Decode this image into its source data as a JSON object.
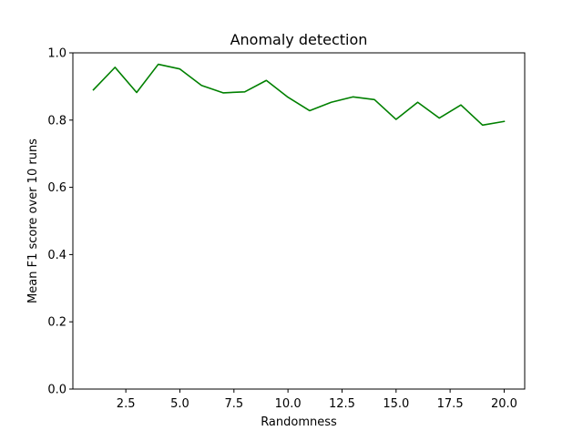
{
  "chart_data": {
    "type": "line",
    "title": "Anomaly detection",
    "xlabel": "Randomness",
    "ylabel": "Mean F1 score over 10 runs",
    "xlim": [
      0.05,
      20.95
    ],
    "ylim": [
      0,
      1.0
    ],
    "xticks": [
      2.5,
      5.0,
      7.5,
      10.0,
      12.5,
      15.0,
      17.5,
      20.0
    ],
    "xtick_labels": [
      "2.5",
      "5.0",
      "7.5",
      "10.0",
      "12.5",
      "15.0",
      "17.5",
      "20.0"
    ],
    "yticks": [
      0.0,
      0.2,
      0.4,
      0.6,
      0.8,
      1.0
    ],
    "ytick_labels": [
      "0.0",
      "0.2",
      "0.4",
      "0.6",
      "0.8",
      "1.0"
    ],
    "grid": false,
    "series": [
      {
        "color": "#008000",
        "x": [
          1,
          2,
          3,
          4,
          5,
          6,
          7,
          8,
          9,
          10,
          11,
          12,
          13,
          14,
          15,
          16,
          17,
          18,
          19,
          20
        ],
        "y": [
          0.89,
          0.957,
          0.882,
          0.966,
          0.952,
          0.903,
          0.881,
          0.884,
          0.918,
          0.868,
          0.828,
          0.853,
          0.869,
          0.861,
          0.802,
          0.853,
          0.806,
          0.845,
          0.785,
          0.796
        ]
      }
    ]
  }
}
